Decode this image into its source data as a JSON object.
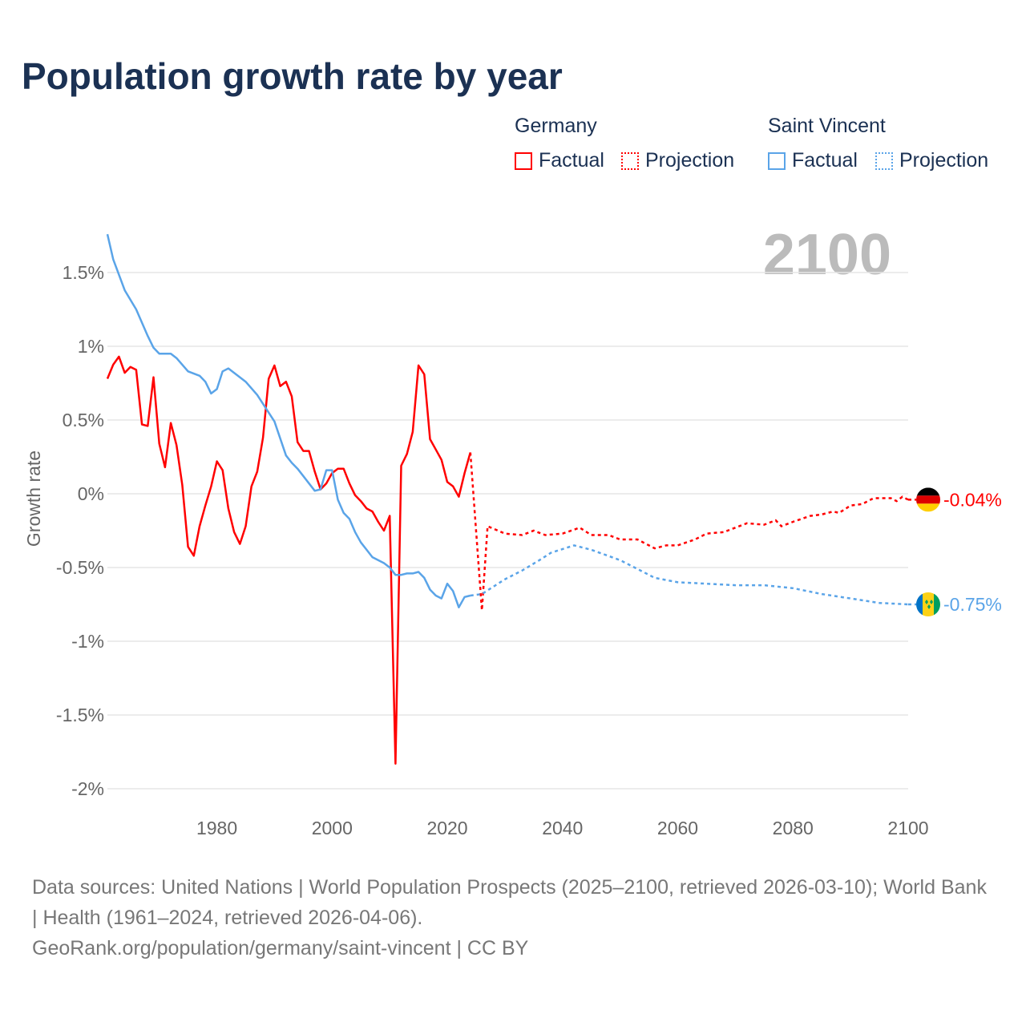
{
  "title": "Population growth rate by year",
  "legend": {
    "groups": [
      {
        "name": "Germany",
        "color": "#ff0000",
        "factual": "Factual",
        "projection": "Projection"
      },
      {
        "name": "Saint Vincent",
        "color": "#5aa4e8",
        "factual": "Factual",
        "projection": "Projection"
      }
    ]
  },
  "year_display": "2100",
  "footer": {
    "sources": "Data sources: United Nations | World Population Prospects (2025–2100, retrieved 2026-03-10); World Bank | Health (1961–2024, retrieved 2026-04-06).",
    "link": "GeoRank.org/population/germany/saint-vincent | CC BY"
  },
  "chart_data": {
    "type": "line",
    "title": "Population growth rate by year",
    "xlabel": "",
    "ylabel": "Growth rate",
    "xlim": [
      1961,
      2100
    ],
    "ylim": [
      -2.15,
      1.8
    ],
    "x_ticks": [
      1980,
      2000,
      2020,
      2040,
      2060,
      2080,
      2100
    ],
    "y_ticks": [
      1.5,
      1,
      0.5,
      0,
      -0.5,
      -1,
      -1.5,
      -2
    ],
    "y_tick_labels": [
      "1.5%",
      "1%",
      "0.5%",
      "0%",
      "-0.5%",
      "-1%",
      "-1.5%",
      "-2%"
    ],
    "grid": true,
    "series": [
      {
        "name": "Germany",
        "color": "#ff0000",
        "end_label": "-0.04%",
        "factual": [
          [
            1961,
            0.78
          ],
          [
            1962,
            0.875
          ],
          [
            1963,
            0.93
          ],
          [
            1964,
            0.82
          ],
          [
            1965,
            0.86
          ],
          [
            1966,
            0.84
          ],
          [
            1967,
            0.47
          ],
          [
            1968,
            0.46
          ],
          [
            1969,
            0.79
          ],
          [
            1970,
            0.34
          ],
          [
            1971,
            0.18
          ],
          [
            1972,
            0.48
          ],
          [
            1973,
            0.33
          ],
          [
            1974,
            0.06
          ],
          [
            1975,
            -0.36
          ],
          [
            1976,
            -0.42
          ],
          [
            1977,
            -0.22
          ],
          [
            1978,
            -0.08
          ],
          [
            1979,
            0.05
          ],
          [
            1980,
            0.22
          ],
          [
            1981,
            0.16
          ],
          [
            1982,
            -0.1
          ],
          [
            1983,
            -0.26
          ],
          [
            1984,
            -0.34
          ],
          [
            1985,
            -0.22
          ],
          [
            1986,
            0.05
          ],
          [
            1987,
            0.15
          ],
          [
            1988,
            0.38
          ],
          [
            1989,
            0.78
          ],
          [
            1990,
            0.87
          ],
          [
            1991,
            0.73
          ],
          [
            1992,
            0.76
          ],
          [
            1993,
            0.66
          ],
          [
            1994,
            0.35
          ],
          [
            1995,
            0.29
          ],
          [
            1996,
            0.29
          ],
          [
            1997,
            0.15
          ],
          [
            1998,
            0.03
          ],
          [
            1999,
            0.07
          ],
          [
            2000,
            0.14
          ],
          [
            2001,
            0.17
          ],
          [
            2002,
            0.17
          ],
          [
            2003,
            0.07
          ],
          [
            2004,
            -0.01
          ],
          [
            2005,
            -0.05
          ],
          [
            2006,
            -0.1
          ],
          [
            2007,
            -0.12
          ],
          [
            2008,
            -0.19
          ],
          [
            2009,
            -0.25
          ],
          [
            2010,
            -0.15
          ],
          [
            2011,
            -1.83
          ],
          [
            2012,
            0.19
          ],
          [
            2013,
            0.27
          ],
          [
            2014,
            0.42
          ],
          [
            2015,
            0.87
          ],
          [
            2016,
            0.81
          ],
          [
            2017,
            0.37
          ],
          [
            2018,
            0.3
          ],
          [
            2019,
            0.23
          ],
          [
            2020,
            0.08
          ],
          [
            2021,
            0.05
          ],
          [
            2022,
            -0.02
          ],
          [
            2023,
            0.14
          ],
          [
            2024,
            0.28
          ]
        ],
        "projection": [
          [
            2024,
            0.28
          ],
          [
            2026,
            -0.79
          ],
          [
            2027,
            -0.22
          ],
          [
            2030,
            -0.27
          ],
          [
            2033,
            -0.28
          ],
          [
            2035,
            -0.25
          ],
          [
            2037,
            -0.28
          ],
          [
            2040,
            -0.27
          ],
          [
            2043,
            -0.23
          ],
          [
            2045,
            -0.28
          ],
          [
            2048,
            -0.28
          ],
          [
            2050,
            -0.31
          ],
          [
            2053,
            -0.31
          ],
          [
            2056,
            -0.37
          ],
          [
            2058,
            -0.35
          ],
          [
            2060,
            -0.35
          ],
          [
            2063,
            -0.31
          ],
          [
            2065,
            -0.27
          ],
          [
            2068,
            -0.26
          ],
          [
            2070,
            -0.23
          ],
          [
            2072,
            -0.2
          ],
          [
            2075,
            -0.21
          ],
          [
            2077,
            -0.18
          ],
          [
            2078,
            -0.22
          ],
          [
            2080,
            -0.19
          ],
          [
            2083,
            -0.15
          ],
          [
            2085,
            -0.14
          ],
          [
            2087,
            -0.12
          ],
          [
            2088,
            -0.13
          ],
          [
            2090,
            -0.08
          ],
          [
            2092,
            -0.07
          ],
          [
            2094,
            -0.03
          ],
          [
            2097,
            -0.03
          ],
          [
            2098,
            -0.05
          ],
          [
            2099,
            -0.02
          ],
          [
            2100,
            -0.04
          ]
        ]
      },
      {
        "name": "Saint Vincent",
        "color": "#5aa4e8",
        "end_label": "-0.75%",
        "factual": [
          [
            1961,
            1.76
          ],
          [
            1962,
            1.59
          ],
          [
            1964,
            1.38
          ],
          [
            1966,
            1.25
          ],
          [
            1968,
            1.07
          ],
          [
            1969,
            0.99
          ],
          [
            1970,
            0.95
          ],
          [
            1972,
            0.95
          ],
          [
            1973,
            0.92
          ],
          [
            1975,
            0.83
          ],
          [
            1977,
            0.8
          ],
          [
            1978,
            0.76
          ],
          [
            1979,
            0.68
          ],
          [
            1980,
            0.71
          ],
          [
            1981,
            0.83
          ],
          [
            1982,
            0.85
          ],
          [
            1985,
            0.76
          ],
          [
            1987,
            0.67
          ],
          [
            1990,
            0.49
          ],
          [
            1992,
            0.26
          ],
          [
            1993,
            0.21
          ],
          [
            1994,
            0.17
          ],
          [
            1997,
            0.02
          ],
          [
            1998,
            0.03
          ],
          [
            1999,
            0.16
          ],
          [
            2000,
            0.16
          ],
          [
            2001,
            -0.04
          ],
          [
            2002,
            -0.13
          ],
          [
            2003,
            -0.17
          ],
          [
            2004,
            -0.26
          ],
          [
            2005,
            -0.33
          ],
          [
            2006,
            -0.38
          ],
          [
            2007,
            -0.43
          ],
          [
            2009,
            -0.47
          ],
          [
            2010,
            -0.5
          ],
          [
            2011,
            -0.55
          ],
          [
            2012,
            -0.55
          ],
          [
            2013,
            -0.54
          ],
          [
            2014,
            -0.54
          ],
          [
            2015,
            -0.53
          ],
          [
            2016,
            -0.57
          ],
          [
            2017,
            -0.65
          ],
          [
            2018,
            -0.69
          ],
          [
            2019,
            -0.71
          ],
          [
            2020,
            -0.61
          ],
          [
            2021,
            -0.66
          ],
          [
            2022,
            -0.77
          ],
          [
            2023,
            -0.7
          ],
          [
            2024,
            -0.69
          ]
        ],
        "projection": [
          [
            2024,
            -0.69
          ],
          [
            2026,
            -0.68
          ],
          [
            2028,
            -0.63
          ],
          [
            2030,
            -0.58
          ],
          [
            2033,
            -0.52
          ],
          [
            2036,
            -0.45
          ],
          [
            2038,
            -0.4
          ],
          [
            2042,
            -0.35
          ],
          [
            2045,
            -0.38
          ],
          [
            2050,
            -0.45
          ],
          [
            2053,
            -0.51
          ],
          [
            2056,
            -0.57
          ],
          [
            2060,
            -0.6
          ],
          [
            2065,
            -0.61
          ],
          [
            2070,
            -0.62
          ],
          [
            2075,
            -0.62
          ],
          [
            2080,
            -0.64
          ],
          [
            2085,
            -0.68
          ],
          [
            2090,
            -0.71
          ],
          [
            2095,
            -0.74
          ],
          [
            2100,
            -0.75
          ]
        ]
      }
    ]
  }
}
